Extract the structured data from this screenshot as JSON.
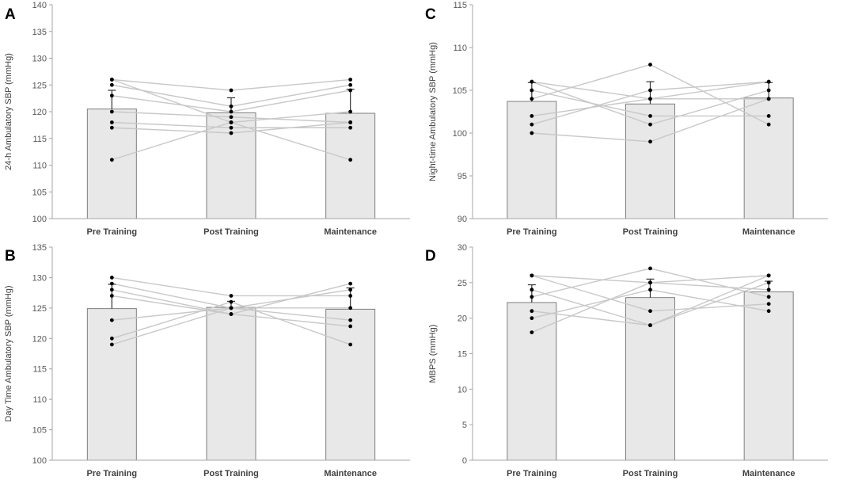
{
  "colors": {
    "bar_fill": "#e8e8e8",
    "bar_stroke": "#7f7f7f",
    "axis": "#a6a6a6",
    "subject_line": "#c8c8c8",
    "point": "#000000",
    "error_bar": "#333333"
  },
  "chart_data": [
    {
      "id": "A",
      "panel_label": "A",
      "type": "bar",
      "title": "",
      "categories": [
        "Pre Training",
        "Post Training",
        "Maintenance"
      ],
      "ylabel": "24-h Ambulatory SBP (mmHg)",
      "ylim": [
        100,
        140
      ],
      "yticks": [
        100,
        105,
        110,
        115,
        120,
        125,
        130,
        135,
        140
      ],
      "means": [
        120.5,
        119.8,
        119.7
      ],
      "errors": [
        3.5,
        2.8,
        4.5
      ],
      "subjects": [
        [
          126,
          124,
          126
        ],
        [
          125,
          121,
          125
        ],
        [
          123,
          120,
          124
        ],
        [
          120,
          119,
          118
        ],
        [
          118,
          117,
          117
        ],
        [
          117,
          116,
          118
        ],
        [
          111,
          118,
          120
        ],
        [
          126,
          118,
          111
        ]
      ]
    },
    {
      "id": "B",
      "panel_label": "B",
      "type": "bar",
      "title": "",
      "categories": [
        "Pre Training",
        "Post Training",
        "Maintenance"
      ],
      "ylabel": "Day Time Ambulatory SBP (mmHg)",
      "ylim": [
        100,
        135
      ],
      "yticks": [
        100,
        105,
        110,
        115,
        120,
        125,
        130,
        135
      ],
      "means": [
        124.9,
        125.1,
        124.8
      ],
      "errors": [
        4.0,
        1.0,
        3.5
      ],
      "subjects": [
        [
          130,
          127,
          127
        ],
        [
          129,
          125,
          123
        ],
        [
          128,
          124,
          129
        ],
        [
          127,
          124,
          122
        ],
        [
          123,
          125,
          128
        ],
        [
          120,
          126,
          119
        ],
        [
          119,
          125,
          125
        ]
      ]
    },
    {
      "id": "C",
      "panel_label": "C",
      "type": "bar",
      "title": "",
      "categories": [
        "Pre Training",
        "Post Training",
        "Maintenance"
      ],
      "ylabel": "Night-time Ambulatory SBP (mmHg)",
      "ylim": [
        90,
        115
      ],
      "yticks": [
        90,
        95,
        100,
        105,
        110,
        115
      ],
      "means": [
        103.7,
        103.4,
        104.1
      ],
      "errors": [
        2.2,
        2.6,
        1.8
      ],
      "subjects": [
        [
          106,
          104,
          106
        ],
        [
          106,
          101,
          105
        ],
        [
          105,
          102,
          102
        ],
        [
          104,
          108,
          101
        ],
        [
          102,
          104,
          104
        ],
        [
          101,
          105,
          106
        ],
        [
          100,
          99,
          104
        ]
      ]
    },
    {
      "id": "D",
      "panel_label": "D",
      "type": "bar",
      "title": "",
      "categories": [
        "Pre Training",
        "Post Training",
        "Maintenance"
      ],
      "ylabel": "MBPS (mmHg)",
      "ylim": [
        0,
        30
      ],
      "yticks": [
        0,
        5,
        10,
        15,
        20,
        25,
        30
      ],
      "means": [
        22.2,
        22.9,
        23.7
      ],
      "errors": [
        2.5,
        2.6,
        1.5
      ],
      "subjects": [
        [
          26,
          25,
          24
        ],
        [
          26,
          21,
          22
        ],
        [
          24,
          19,
          26
        ],
        [
          23,
          27,
          23
        ],
        [
          21,
          19,
          25
        ],
        [
          20,
          24,
          21
        ],
        [
          18,
          25,
          26
        ]
      ]
    }
  ]
}
